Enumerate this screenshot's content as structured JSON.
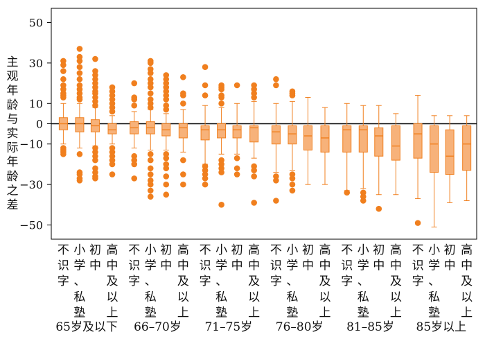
{
  "colors": {
    "box_fill": "#f7b27a",
    "box_stroke": "#f07f1e",
    "outlier": "#f07f1e",
    "zero_line": "#000000",
    "frame": "#000000"
  },
  "chart_data": {
    "type": "boxplot",
    "title": "",
    "ylabel": "主观年龄与实际年龄之差",
    "xlabel": "",
    "ylim": [
      -57,
      57
    ],
    "yticks": [
      50,
      30,
      10,
      0,
      -10,
      -30,
      -50
    ],
    "ytick_labels": [
      "50",
      "30",
      "10",
      "0",
      "−10",
      "−30",
      "−50"
    ],
    "reference_line": 0,
    "education_levels": [
      "不识字",
      "小学、私塾",
      "初中",
      "高中及以上"
    ],
    "groups": [
      {
        "label": "65岁及以下",
        "boxes": [
          {
            "education": "不识字",
            "q1": -3,
            "median": 0,
            "q3": 3,
            "whisker_low": -10,
            "whisker_high": 10,
            "outliers": [
              31,
              29,
              26,
              22,
              19,
              17,
              15,
              14,
              13,
              -12,
              -13,
              -14,
              -15
            ]
          },
          {
            "education": "小学、私塾",
            "q1": -4,
            "median": 0,
            "q3": 3,
            "whisker_low": -12,
            "whisker_high": 10,
            "outliers": [
              37,
              33,
              31,
              28,
              25,
              22,
              19,
              17,
              15,
              13,
              12,
              -15,
              -24,
              -25,
              -27,
              -28
            ]
          },
          {
            "education": "初中",
            "q1": -4,
            "median": -1,
            "q3": 2,
            "whisker_low": -11,
            "whisker_high": 8,
            "outliers": [
              32,
              26,
              24,
              22,
              20,
              18,
              16,
              15,
              13,
              11,
              9,
              -12,
              -14,
              -16,
              -18,
              -22,
              -24,
              -26,
              -27
            ]
          },
          {
            "education": "高中及以上",
            "q1": -5,
            "median": -3,
            "q3": 0,
            "whisker_low": -10,
            "whisker_high": 4,
            "outliers": [
              18,
              16,
              14,
              12,
              10,
              8,
              6,
              -12,
              -14,
              -16,
              -18,
              -20,
              -25
            ]
          }
        ]
      },
      {
        "label": "66–70岁",
        "boxes": [
          {
            "education": "不识字",
            "q1": -5,
            "median": -2,
            "q3": 1,
            "whisker_low": -12,
            "whisker_high": 6,
            "outliers": [
              20,
              13,
              12,
              9,
              -16,
              -18,
              -20,
              -27
            ]
          },
          {
            "education": "小学、私塾",
            "q1": -5,
            "median": -2,
            "q3": 1,
            "whisker_low": -13,
            "whisker_high": 7,
            "outliers": [
              31,
              30,
              27,
              25,
              22,
              20,
              18,
              15,
              12,
              10,
              8,
              -15,
              -18,
              -22,
              -25,
              -28,
              -30,
              -33,
              -36
            ]
          },
          {
            "education": "初中",
            "q1": -6,
            "median": -3,
            "q3": 0,
            "whisker_low": -13,
            "whisker_high": 5,
            "outliers": [
              24,
              22,
              20,
              18,
              16,
              14,
              12,
              9,
              7,
              -15,
              -17,
              -20,
              -22,
              -26,
              -30,
              -35
            ]
          },
          {
            "education": "高中及以上",
            "q1": -7,
            "median": -2,
            "q3": 0,
            "whisker_low": -14,
            "whisker_high": 7,
            "outliers": [
              23,
              15,
              14,
              10,
              -18,
              -25,
              -30
            ]
          }
        ]
      },
      {
        "label": "71–75岁",
        "boxes": [
          {
            "education": "不识字",
            "q1": -8,
            "median": -3,
            "q3": -1,
            "whisker_low": -20,
            "whisker_high": 9,
            "outliers": [
              28,
              19,
              14,
              -21,
              -23,
              -25,
              -27,
              -30
            ]
          },
          {
            "education": "小学、私塾",
            "q1": -7,
            "median": -3,
            "q3": 0,
            "whisker_low": -15,
            "whisker_high": 8,
            "outliers": [
              19,
              18,
              17,
              14,
              13,
              10,
              -18,
              -20,
              -22,
              -24,
              -40
            ]
          },
          {
            "education": "初中",
            "q1": -7,
            "median": -3,
            "q3": -1,
            "whisker_low": -15,
            "whisker_high": 10,
            "outliers": [
              19,
              -17,
              -22,
              -25
            ]
          },
          {
            "education": "高中及以上",
            "q1": -9,
            "median": -2,
            "q3": -1,
            "whisker_low": -17,
            "whisker_high": 11,
            "outliers": [
              19,
              17,
              15,
              13,
              -21,
              -23,
              -26,
              -39
            ]
          }
        ]
      },
      {
        "label": "76–80岁",
        "boxes": [
          {
            "education": "不识字",
            "q1": -10,
            "median": -4,
            "q3": -1,
            "whisker_low": -24,
            "whisker_high": 10,
            "outliers": [
              22,
              19,
              -26,
              -28,
              -38
            ]
          },
          {
            "education": "小学、私塾",
            "q1": -10,
            "median": -5,
            "q3": -1,
            "whisker_low": -23,
            "whisker_high": 11,
            "outliers": [
              16,
              15,
              14,
              -25,
              -27,
              -30,
              -33
            ]
          },
          {
            "education": "初中",
            "q1": -13,
            "median": -6,
            "q3": -1,
            "whisker_low": -30,
            "whisker_high": 13,
            "outliers": []
          },
          {
            "education": "高中及以上",
            "q1": -14,
            "median": -7,
            "q3": -1,
            "whisker_low": -30,
            "whisker_high": 8,
            "outliers": []
          }
        ]
      },
      {
        "label": "81–85岁",
        "boxes": [
          {
            "education": "不识字",
            "q1": -14,
            "median": -3,
            "q3": -1,
            "whisker_low": -33,
            "whisker_high": 10,
            "outliers": [
              -34
            ]
          },
          {
            "education": "小学、私塾",
            "q1": -14,
            "median": -3,
            "q3": -1,
            "whisker_low": -32,
            "whisker_high": 9,
            "outliers": [
              -34,
              -36,
              -38
            ]
          },
          {
            "education": "初中",
            "q1": -16,
            "median": -6,
            "q3": -2,
            "whisker_low": -35,
            "whisker_high": 9,
            "outliers": [
              -42
            ]
          },
          {
            "education": "高中及以上",
            "q1": -18,
            "median": -11,
            "q3": -1,
            "whisker_low": -35,
            "whisker_high": 5,
            "outliers": []
          }
        ]
      },
      {
        "label": "85岁以上",
        "boxes": [
          {
            "education": "不识字",
            "q1": -17,
            "median": -5,
            "q3": 0,
            "whisker_low": -37,
            "whisker_high": 14,
            "outliers": [
              -49
            ]
          },
          {
            "education": "小学、私塾",
            "q1": -24,
            "median": -10,
            "q3": -1,
            "whisker_low": -51,
            "whisker_high": 4,
            "outliers": []
          },
          {
            "education": "初中",
            "q1": -25,
            "median": -16,
            "q3": -3,
            "whisker_low": -39,
            "whisker_high": 4,
            "outliers": []
          },
          {
            "education": "高中及以上",
            "q1": -23,
            "median": -10,
            "q3": -1,
            "whisker_low": -38,
            "whisker_high": 4,
            "outliers": []
          }
        ]
      }
    ]
  }
}
